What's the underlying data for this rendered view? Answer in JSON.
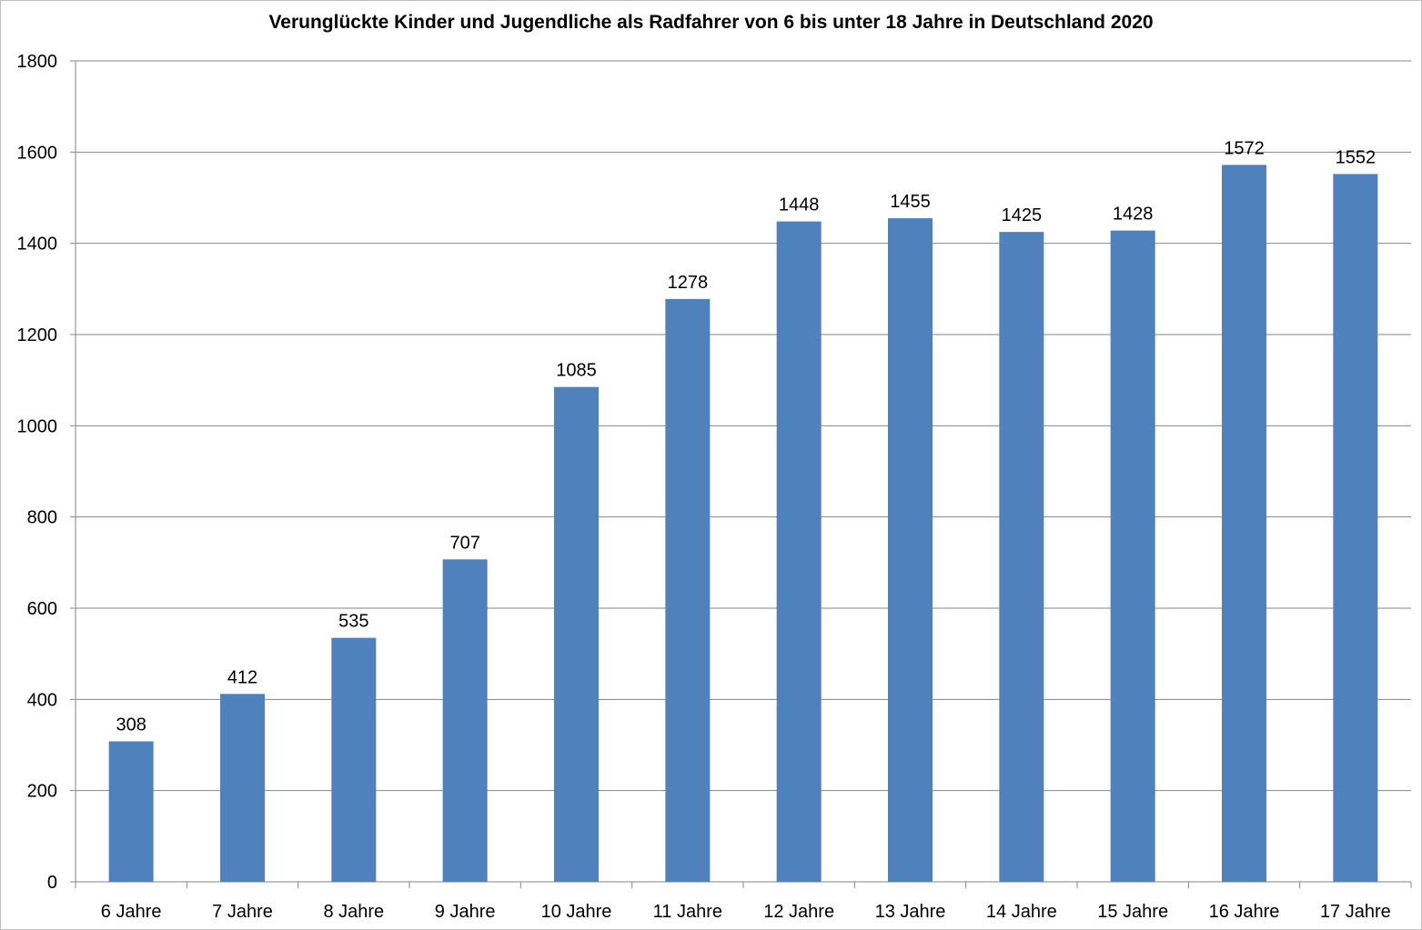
{
  "chart_data": {
    "type": "bar",
    "title": "Verunglückte Kinder und Jugendliche als Radfahrer von 6 bis unter 18 Jahre in Deutschland 2020",
    "xlabel": "",
    "ylabel": "",
    "categories": [
      "6 Jahre",
      "7 Jahre",
      "8 Jahre",
      "9 Jahre",
      "10 Jahre",
      "11 Jahre",
      "12 Jahre",
      "13 Jahre",
      "14 Jahre",
      "15 Jahre",
      "16 Jahre",
      "17 Jahre"
    ],
    "values": [
      308,
      412,
      535,
      707,
      1085,
      1278,
      1448,
      1455,
      1425,
      1428,
      1572,
      1552
    ],
    "ylim": [
      0,
      1800
    ],
    "yticks": [
      0,
      200,
      400,
      600,
      800,
      1000,
      1200,
      1400,
      1600,
      1800
    ],
    "grid": true,
    "legend": "none",
    "bar_color": "#4F81BD",
    "grid_color": "#868686"
  }
}
